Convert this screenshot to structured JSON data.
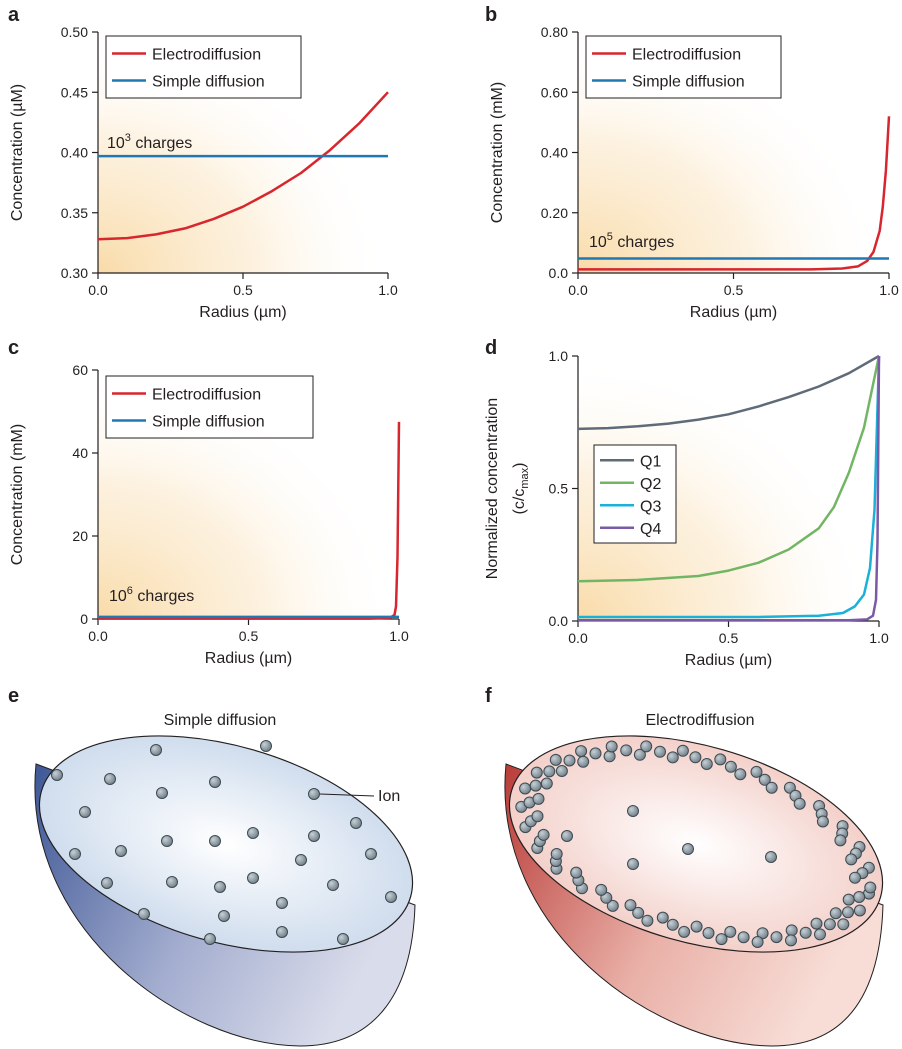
{
  "chart_data": [
    {
      "panel": "a",
      "type": "line",
      "xlabel": "Radius (µm)",
      "ylabel": "Concentration (µM)",
      "xlim": [
        0,
        1
      ],
      "ylim": [
        0.3,
        0.5
      ],
      "xticks": [
        "0.0",
        "0.5",
        "1.0"
      ],
      "yticks": [
        "0.30",
        "0.35",
        "0.40",
        "0.45",
        "0.50"
      ],
      "legend": "top-left",
      "annotation": "10",
      "annotation_sup": "3",
      "annotation_rest": " charges",
      "series": [
        {
          "name": "Electrodiffusion",
          "color": "#d7262d",
          "x": [
            0,
            0.1,
            0.2,
            0.3,
            0.4,
            0.5,
            0.6,
            0.7,
            0.8,
            0.9,
            1.0
          ],
          "y": [
            0.328,
            0.329,
            0.332,
            0.337,
            0.345,
            0.355,
            0.368,
            0.383,
            0.402,
            0.424,
            0.45
          ]
        },
        {
          "name": "Simple diffusion",
          "color": "#1f78b4",
          "x": [
            0,
            1.0
          ],
          "y": [
            0.397,
            0.397
          ]
        }
      ]
    },
    {
      "panel": "b",
      "type": "line",
      "xlabel": "Radius (µm)",
      "ylabel": "Concentration (mM)",
      "xlim": [
        0,
        1
      ],
      "ylim": [
        0,
        0.8
      ],
      "xticks": [
        "0.0",
        "0.5",
        "1.0"
      ],
      "yticks": [
        "0.0",
        "0.20",
        "0.40",
        "0.60",
        "0.80"
      ],
      "legend": "top-left",
      "annotation": "10",
      "annotation_sup": "5",
      "annotation_rest": " charges",
      "series": [
        {
          "name": "Electrodiffusion",
          "color": "#d7262d",
          "x": [
            0,
            0.5,
            0.75,
            0.85,
            0.9,
            0.93,
            0.95,
            0.97,
            0.98,
            0.99,
            1.0
          ],
          "y": [
            0.012,
            0.012,
            0.012,
            0.015,
            0.022,
            0.04,
            0.07,
            0.14,
            0.22,
            0.34,
            0.52
          ]
        },
        {
          "name": "Simple diffusion",
          "color": "#1f78b4",
          "x": [
            0,
            1.0
          ],
          "y": [
            0.048,
            0.048
          ]
        }
      ]
    },
    {
      "panel": "c",
      "type": "line",
      "xlabel": "Radius (µm)",
      "ylabel": "Concentration (mM)",
      "xlim": [
        0,
        1
      ],
      "ylim": [
        0,
        60
      ],
      "xticks": [
        "0.0",
        "0.5",
        "1.0"
      ],
      "yticks": [
        "0",
        "20",
        "40",
        "60"
      ],
      "legend": "top-left",
      "annotation": "10",
      "annotation_sup": "6",
      "annotation_rest": " charges",
      "series": [
        {
          "name": "Electrodiffusion",
          "color": "#d7262d",
          "x": [
            0,
            0.9,
            0.97,
            0.985,
            0.99,
            0.995,
            1.0
          ],
          "y": [
            0.1,
            0.1,
            0.3,
            1.0,
            3.0,
            15.0,
            47.5
          ]
        },
        {
          "name": "Simple diffusion",
          "color": "#1f78b4",
          "x": [
            0,
            1.0
          ],
          "y": [
            0.5,
            0.5
          ]
        }
      ]
    },
    {
      "panel": "d",
      "type": "line",
      "xlabel": "Radius (µm)",
      "ylabel": "Normalized concentration",
      "ylabel2_open": "(c/c",
      "ylabel2_sub": "max",
      "ylabel2_close": ")",
      "xlim": [
        0,
        1
      ],
      "ylim": [
        0,
        1
      ],
      "xticks": [
        "0.0",
        "0.5",
        "1.0"
      ],
      "yticks": [
        "0.0",
        "0.5",
        "1.0"
      ],
      "legend": "center-left",
      "series": [
        {
          "name": "Q1",
          "color": "#5f6b78",
          "x": [
            0,
            0.1,
            0.2,
            0.3,
            0.4,
            0.5,
            0.6,
            0.7,
            0.8,
            0.9,
            1.0
          ],
          "y": [
            0.725,
            0.728,
            0.735,
            0.745,
            0.76,
            0.78,
            0.81,
            0.845,
            0.885,
            0.935,
            1.0
          ]
        },
        {
          "name": "Q2",
          "color": "#72b565",
          "x": [
            0,
            0.2,
            0.4,
            0.5,
            0.6,
            0.7,
            0.8,
            0.85,
            0.9,
            0.95,
            1.0
          ],
          "y": [
            0.15,
            0.155,
            0.17,
            0.19,
            0.22,
            0.27,
            0.35,
            0.43,
            0.56,
            0.73,
            1.0
          ]
        },
        {
          "name": "Q3",
          "color": "#1ab0d8",
          "x": [
            0,
            0.6,
            0.8,
            0.88,
            0.92,
            0.95,
            0.97,
            0.985,
            1.0
          ],
          "y": [
            0.015,
            0.015,
            0.02,
            0.03,
            0.055,
            0.1,
            0.2,
            0.42,
            1.0
          ]
        },
        {
          "name": "Q4",
          "color": "#7a5aa6",
          "x": [
            0,
            0.9,
            0.96,
            0.98,
            0.99,
            0.995,
            1.0
          ],
          "y": [
            0.003,
            0.003,
            0.006,
            0.02,
            0.08,
            0.3,
            1.0
          ]
        }
      ]
    }
  ],
  "illustrations": {
    "e": {
      "label": "e",
      "title": "Simple diffusion",
      "ion_label": "Ion"
    },
    "f": {
      "label": "f",
      "title": "Electrodiffusion"
    }
  },
  "colors": {
    "glow": "#f9d9a4",
    "blue_rim": "#4c61a0",
    "blue_surface": "#dfe8f4",
    "red_rim": "#c4504b",
    "red_surface": "#f5d2cd",
    "ion_fill": "#8c9aa3"
  }
}
